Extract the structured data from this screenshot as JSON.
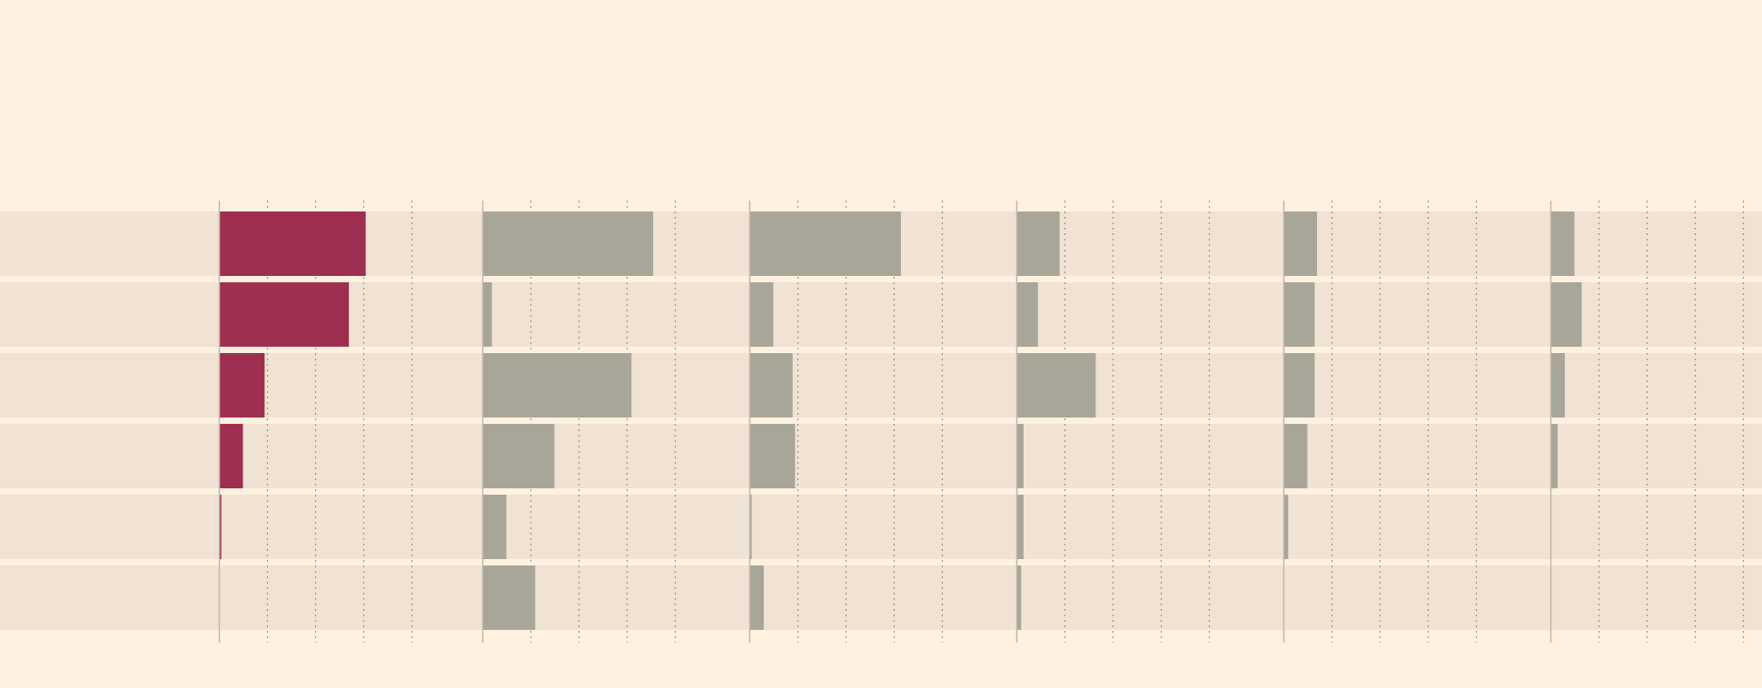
{
  "colors": {
    "background": "#fff1e0",
    "row_band": "#f0e3d4",
    "highlight": "#9e2f50",
    "bar": "#a8a699",
    "axis": "#c0b8aa",
    "grid": "#9c9486"
  },
  "chart_data": {
    "type": "bar",
    "orientation": "horizontal",
    "layout": "small-multiples",
    "title": "",
    "xlabel": "",
    "ylabel": "",
    "categories": [
      "",
      "",
      "",
      "",
      "",
      ""
    ],
    "xlim": [
      0,
      5
    ],
    "grid": true,
    "gridlines_at": [
      1,
      2,
      3,
      4
    ],
    "legend": "none",
    "series": [
      {
        "color": "highlight",
        "values": [
          3.05,
          2.7,
          0.95,
          0.5,
          0.05,
          0
        ]
      },
      {
        "color": "bar",
        "values": [
          3.55,
          0.2,
          3.1,
          1.5,
          0.5,
          1.1
        ]
      },
      {
        "color": "bar",
        "values": [
          3.15,
          0.5,
          0.9,
          0.95,
          0.05,
          0.3
        ]
      },
      {
        "color": "bar",
        "values": [
          0.9,
          0.45,
          1.65,
          0.15,
          0.15,
          0.1
        ]
      },
      {
        "color": "bar",
        "values": [
          0.7,
          0.65,
          0.65,
          0.5,
          0.1,
          0
        ]
      },
      {
        "color": "bar",
        "values": [
          0.5,
          0.65,
          0.3,
          0.15,
          0,
          0
        ]
      }
    ]
  }
}
